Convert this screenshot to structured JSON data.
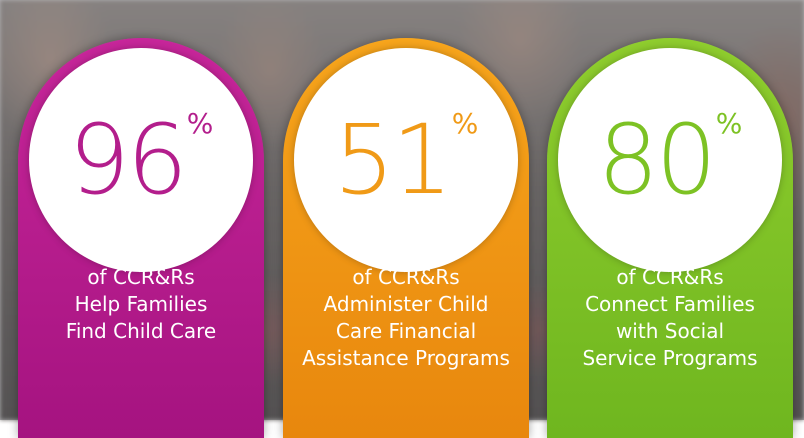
{
  "stats": [
    {
      "value": "96",
      "unit": "%",
      "lines": [
        "of CCR&Rs",
        "Help Families",
        "Find Child Care"
      ],
      "color": "#b31e8c"
    },
    {
      "value": "51",
      "unit": "%",
      "lines": [
        "of CCR&Rs",
        "Administer Child",
        "Care Financial",
        "Assistance Programs"
      ],
      "color": "#f09a17"
    },
    {
      "value": "80",
      "unit": "%",
      "lines": [
        "of CCR&Rs",
        "Connect Families",
        "with Social",
        "Service Programs"
      ],
      "color": "#7dc224"
    }
  ]
}
